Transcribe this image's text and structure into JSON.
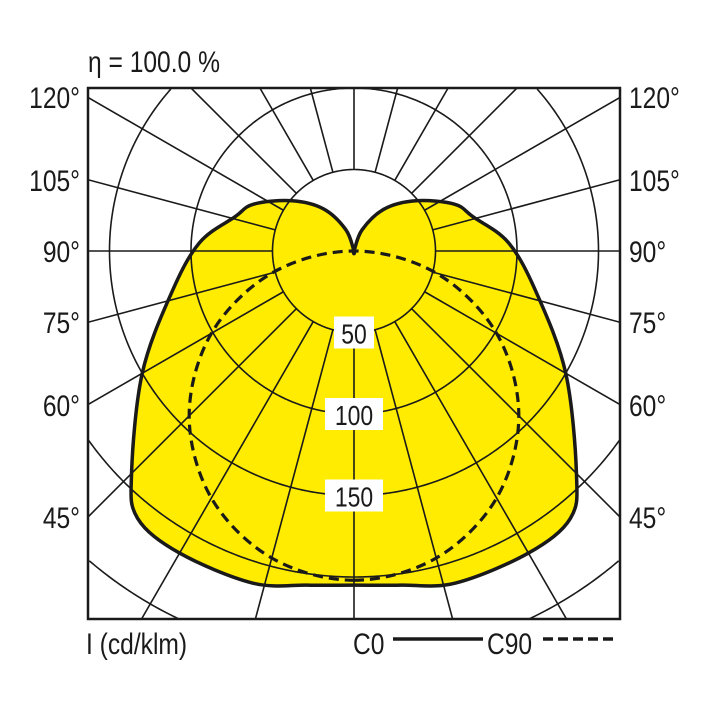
{
  "chart_data": {
    "type": "polar",
    "title": "η = 100.0 %",
    "unit_label": "I (cd/klm)",
    "radial_ticks": [
      50,
      100,
      150
    ],
    "radial_grid": [
      50,
      100,
      150,
      200,
      250,
      300
    ],
    "angle_step_deg": 15,
    "angle_labels": [
      "120°",
      "105°",
      "90°",
      "75°",
      "60°",
      "45°"
    ],
    "colors": {
      "fill": "#ffec00",
      "line": "#1a1a1a"
    },
    "series": [
      {
        "name": "C0",
        "style": "solid",
        "filled": true,
        "angles": [
          0,
          8,
          17,
          30,
          39,
          45,
          60,
          77,
          93,
          106,
          115,
          129,
          144,
          159,
          180
        ],
        "values": [
          205,
          207,
          213,
          214,
          211,
          193,
          150,
          115,
          95,
          76,
          68,
          49,
          32,
          14,
          0
        ]
      },
      {
        "name": "C90",
        "style": "dashed",
        "filled": false,
        "angles": [
          0,
          15,
          30,
          45,
          60,
          75,
          90
        ],
        "values": [
          202,
          195,
          175,
          143,
          101,
          52,
          0
        ]
      }
    ]
  }
}
